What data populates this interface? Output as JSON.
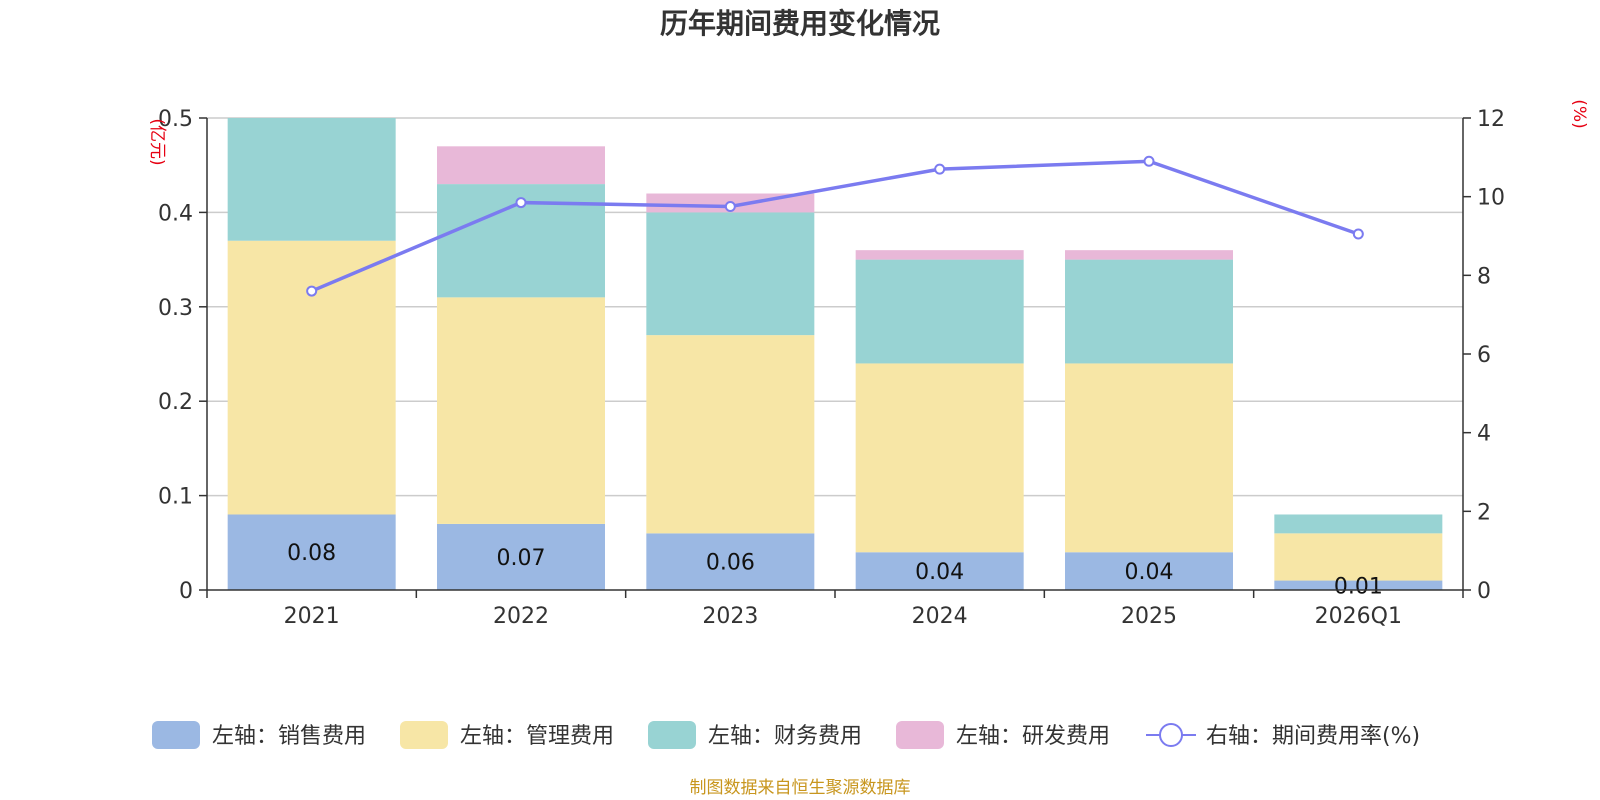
{
  "chart_data": {
    "type": "bar",
    "stacked": true,
    "title": "历年期间费用变化情况",
    "categories": [
      "2021",
      "2022",
      "2023",
      "2024",
      "2025",
      "2026Q1"
    ],
    "left_axis": {
      "unit": "(亿元)",
      "ylim": [
        0,
        0.5
      ],
      "ticks": [
        0,
        0.1,
        0.2,
        0.3,
        0.4,
        0.5
      ],
      "tick_labels": [
        "0",
        "0.1",
        "0.2",
        "0.3",
        "0.4",
        "0.5"
      ]
    },
    "right_axis": {
      "unit": "(%)",
      "ylim": [
        0,
        12
      ],
      "ticks": [
        0,
        2,
        4,
        6,
        8,
        10,
        12
      ],
      "tick_labels": [
        "0",
        "2",
        "4",
        "6",
        "8",
        "10",
        "12"
      ]
    },
    "series": [
      {
        "name": "左轴：销售费用",
        "axis": "left",
        "type": "bar",
        "color": "#9bb8e3",
        "values": [
          0.08,
          0.07,
          0.06,
          0.04,
          0.04,
          0.01
        ],
        "labels": [
          "0.08",
          "0.07",
          "0.06",
          "0.04",
          "0.04",
          "0.01"
        ]
      },
      {
        "name": "左轴：管理费用",
        "axis": "left",
        "type": "bar",
        "color": "#f7e6a6",
        "values": [
          0.29,
          0.24,
          0.21,
          0.2,
          0.2,
          0.05
        ]
      },
      {
        "name": "左轴：财务费用",
        "axis": "left",
        "type": "bar",
        "color": "#98d3d3",
        "values": [
          0.13,
          0.12,
          0.13,
          0.11,
          0.11,
          0.02
        ]
      },
      {
        "name": "左轴：研发费用",
        "axis": "left",
        "type": "bar",
        "color": "#e8b8d8",
        "values": [
          0.0,
          0.04,
          0.02,
          0.01,
          0.01,
          0.0
        ]
      },
      {
        "name": "右轴：期间费用率(%)",
        "axis": "right",
        "type": "line",
        "color": "#7b7bf0",
        "values": [
          7.6,
          9.85,
          9.75,
          10.7,
          10.9,
          9.05
        ]
      }
    ],
    "source": "制图数据来自恒生聚源数据库"
  }
}
